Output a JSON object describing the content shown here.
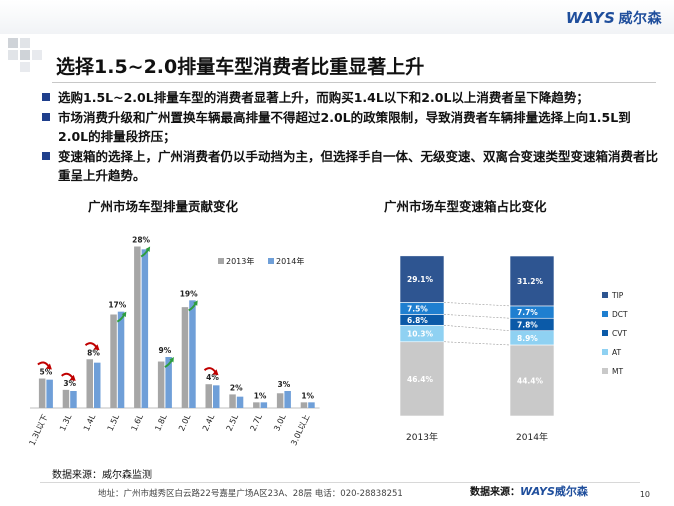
{
  "header": {
    "logo_en": "WAYS",
    "logo_cn": "威尔森"
  },
  "title": "选择1.5~2.0排量车型消费者比重显著上升",
  "bullets": [
    "选购1.5L~2.0L排量车型的消费者显著上升，而购买1.4L以下和2.0L以上消费者呈下降趋势；",
    "市场消费升级和广州置换车辆最高排量不得超过2.0L的政策限制，导致消费者车辆排量选择上向1.5L到2.0L的排量段挤压；",
    "变速箱的选择上，广州消费者仍以手动挡为主，但选择手自一体、无级变速、双离合变速类型变速箱消费者比重呈上升趋势。"
  ],
  "chart_data": [
    {
      "type": "bar",
      "title": "广州市场车型排量贡献变化",
      "categories": [
        "1.3L以下",
        "1.3L",
        "1.4L",
        "1.5L",
        "1.6L",
        "1.8L",
        "2.0L",
        "2.4L",
        "2.5L",
        "2.7L",
        "3.0L",
        "3.0L以上"
      ],
      "series": [
        {
          "name": "2013年",
          "values": [
            5.2,
            3.2,
            8.6,
            16.5,
            28.5,
            8.2,
            17.8,
            4.2,
            2.4,
            1.0,
            2.6,
            1.0
          ],
          "color": "#a6a6a6"
        },
        {
          "name": "2014年",
          "values": [
            5,
            3,
            8,
            17,
            28,
            9,
            19,
            4,
            2,
            1,
            3,
            1
          ],
          "color": "#6f9fd8"
        }
      ],
      "data_labels": [
        "5%",
        "3%",
        "8%",
        "17%",
        "28%",
        "9%",
        "19%",
        "4%",
        "2%",
        "1%",
        "3%",
        "1%"
      ],
      "trend": [
        "down",
        "down",
        "down",
        "up",
        "up",
        "up",
        "up",
        "down",
        "",
        "",
        "",
        ""
      ],
      "trend_colors": {
        "up": "#2e9e3f",
        "down": "#c00000"
      },
      "ylim": [
        0,
        30
      ],
      "legend_position": "top-right",
      "grid": false
    },
    {
      "type": "bar",
      "stacked": true,
      "title": "广州市场车型变速箱占比变化",
      "categories": [
        "2013年",
        "2014年"
      ],
      "series": [
        {
          "name": "MT",
          "values": [
            46.4,
            44.4
          ],
          "labels": [
            "46.4%",
            "44.4%"
          ],
          "color": "#c9c9c9"
        },
        {
          "name": "AT",
          "values": [
            10.3,
            8.9
          ],
          "labels": [
            "10.3%",
            "8.9%"
          ],
          "color": "#8fd1f2"
        },
        {
          "name": "CVT",
          "values": [
            6.8,
            7.8
          ],
          "labels": [
            "6.8%",
            "7.8%"
          ],
          "color": "#0b5aa8"
        },
        {
          "name": "DCT",
          "values": [
            7.5,
            7.7
          ],
          "labels": [
            "7.5%",
            "7.7%"
          ],
          "color": "#1f7fd0"
        },
        {
          "name": "TIP",
          "values": [
            29.1,
            31.2
          ],
          "labels": [
            "29.1%",
            "31.2%"
          ],
          "color": "#2e5591"
        }
      ],
      "ylim": [
        0,
        100
      ],
      "legend_position": "right",
      "legend_order": [
        "TIP",
        "DCT",
        "CVT",
        "AT",
        "MT"
      ],
      "grid": false
    }
  ],
  "footer": {
    "source_left": "数据来源：威尔森监测",
    "address": "地址：广州市越秀区白云路22号嘉星广场A区23A、28层   电话：020-28838251",
    "source_right_label": "数据来源：",
    "source_right_en": "WAYS",
    "source_right_cn": "威尔森",
    "page_number": "10"
  }
}
